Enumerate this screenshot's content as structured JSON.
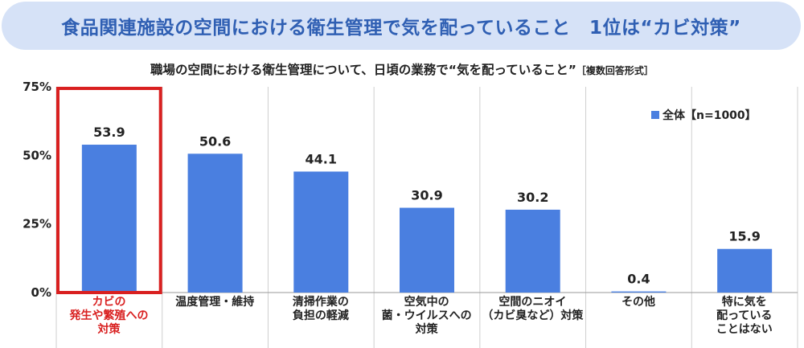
{
  "banner": {
    "title": "食品関連施設の空間における衛生管理で気を配っていること　1位は“カビ対策”"
  },
  "subtitle": {
    "text": "職場の空間における衛生管理について、日頃の業務で“気を配っていること”",
    "note": "［複数回答形式］"
  },
  "chart_data": {
    "type": "bar",
    "categories": [
      "カビの\n発生や繁殖への\n対策",
      "温度管理・維持",
      "清掃作業の\n負担の軽減",
      "空気中の\n菌・ウイルスへの\n対策",
      "空間のニオイ\n（カビ臭など）対策",
      "その他",
      "特に気を\n配っている\nことはない"
    ],
    "series": [
      {
        "name": "全体【n=1000】",
        "values": [
          53.9,
          50.6,
          44.1,
          30.9,
          30.2,
          0.4,
          15.9
        ]
      }
    ],
    "data_labels": [
      "53.9",
      "50.6",
      "44.1",
      "30.9",
      "30.2",
      "0.4",
      "15.9"
    ],
    "yticks": [
      "0%",
      "25%",
      "50%",
      "75%"
    ],
    "ylim": [
      0,
      75
    ],
    "highlight_index": 0,
    "legend_position": "top-right",
    "colors": {
      "bar": "#4a7fe0",
      "highlight": "#d92020",
      "banner_bg": "#d6e2f7",
      "banner_text": "#2f5fb3"
    }
  }
}
